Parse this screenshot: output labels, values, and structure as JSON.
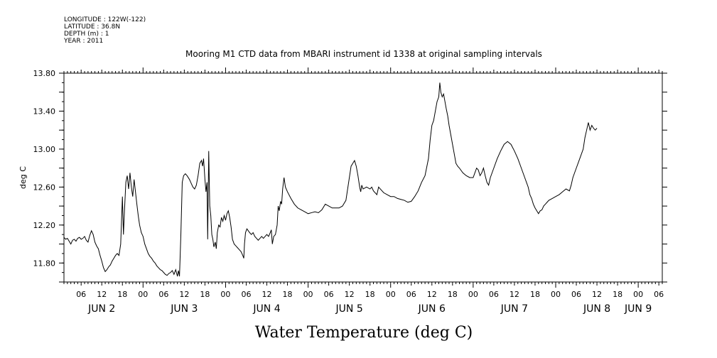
{
  "header": {
    "lines": [
      "LONGITUDE : 122W(-122)",
      "LATITUDE : 36.8N",
      "DEPTH (m) : 1",
      "YEAR : 2011"
    ]
  },
  "chart_data": {
    "type": "line",
    "title": "Mooring M1 CTD data from MBARI instrument id 1338 at original sampling intervals",
    "xlabel": "Water Temperature (deg C)",
    "ylabel": "deg C",
    "x_unit": "hours since JUN 2 00:00, 2011",
    "xlim": [
      1,
      175
    ],
    "ylim": [
      11.6,
      13.8
    ],
    "yticks": [
      "11.80",
      "12.20",
      "12.60",
      "13.00",
      "13.40",
      "13.80"
    ],
    "ytick_values": [
      11.8,
      12.2,
      12.6,
      13.0,
      13.4,
      13.8
    ],
    "xtick_hour_labels": [
      {
        "h": 6,
        "label": "06"
      },
      {
        "h": 12,
        "label": "12"
      },
      {
        "h": 18,
        "label": "18"
      },
      {
        "h": 24,
        "label": "00"
      },
      {
        "h": 30,
        "label": "06"
      },
      {
        "h": 36,
        "label": "12"
      },
      {
        "h": 42,
        "label": "18"
      },
      {
        "h": 48,
        "label": "00"
      },
      {
        "h": 54,
        "label": "06"
      },
      {
        "h": 60,
        "label": "12"
      },
      {
        "h": 66,
        "label": "18"
      },
      {
        "h": 72,
        "label": "00"
      },
      {
        "h": 78,
        "label": "06"
      },
      {
        "h": 84,
        "label": "12"
      },
      {
        "h": 90,
        "label": "18"
      },
      {
        "h": 96,
        "label": "00"
      },
      {
        "h": 102,
        "label": "06"
      },
      {
        "h": 108,
        "label": "12"
      },
      {
        "h": 114,
        "label": "18"
      },
      {
        "h": 120,
        "label": "00"
      },
      {
        "h": 126,
        "label": "06"
      },
      {
        "h": 132,
        "label": "12"
      },
      {
        "h": 138,
        "label": "18"
      },
      {
        "h": 144,
        "label": "00"
      },
      {
        "h": 150,
        "label": "06"
      },
      {
        "h": 156,
        "label": "12"
      },
      {
        "h": 162,
        "label": "18"
      },
      {
        "h": 168,
        "label": "00"
      },
      {
        "h": 174,
        "label": "06"
      }
    ],
    "day_labels": [
      {
        "h": 12,
        "label": "JUN  2"
      },
      {
        "h": 36,
        "label": "JUN  3"
      },
      {
        "h": 60,
        "label": "JUN  4"
      },
      {
        "h": 84,
        "label": "JUN  5"
      },
      {
        "h": 108,
        "label": "JUN  6"
      },
      {
        "h": 132,
        "label": "JUN  7"
      },
      {
        "h": 156,
        "label": "JUN  8"
      },
      {
        "h": 168,
        "label": "JUN  9"
      }
    ],
    "series": [
      {
        "values": [
          [
            1,
            12.07
          ],
          [
            1.5,
            12.05
          ],
          [
            2,
            12.06
          ],
          [
            2.5,
            12.03
          ],
          [
            3,
            12.0
          ],
          [
            3.5,
            12.04
          ],
          [
            4,
            12.05
          ],
          [
            4.5,
            12.03
          ],
          [
            5,
            12.06
          ],
          [
            5.5,
            12.07
          ],
          [
            6,
            12.05
          ],
          [
            6.5,
            12.06
          ],
          [
            7,
            12.08
          ],
          [
            7.5,
            12.04
          ],
          [
            8,
            12.02
          ],
          [
            8.5,
            12.09
          ],
          [
            9,
            12.14
          ],
          [
            9.5,
            12.1
          ],
          [
            10,
            12.02
          ],
          [
            10.5,
            11.98
          ],
          [
            11,
            11.95
          ],
          [
            11.5,
            11.88
          ],
          [
            12,
            11.82
          ],
          [
            12.5,
            11.75
          ],
          [
            13,
            11.71
          ],
          [
            13.5,
            11.73
          ],
          [
            14,
            11.76
          ],
          [
            14.5,
            11.78
          ],
          [
            15,
            11.82
          ],
          [
            15.5,
            11.85
          ],
          [
            16,
            11.88
          ],
          [
            16.5,
            11.9
          ],
          [
            17,
            11.88
          ],
          [
            17.5,
            12.0
          ],
          [
            18,
            12.5
          ],
          [
            18.3,
            12.1
          ],
          [
            18.6,
            12.35
          ],
          [
            19,
            12.65
          ],
          [
            19.4,
            12.72
          ],
          [
            19.8,
            12.58
          ],
          [
            20.2,
            12.75
          ],
          [
            20.6,
            12.6
          ],
          [
            21,
            12.5
          ],
          [
            21.4,
            12.68
          ],
          [
            21.8,
            12.55
          ],
          [
            22.2,
            12.42
          ],
          [
            22.6,
            12.3
          ],
          [
            23,
            12.2
          ],
          [
            23.5,
            12.12
          ],
          [
            24,
            12.08
          ],
          [
            24.5,
            12.0
          ],
          [
            25,
            11.95
          ],
          [
            25.5,
            11.9
          ],
          [
            26,
            11.87
          ],
          [
            26.5,
            11.85
          ],
          [
            27,
            11.82
          ],
          [
            27.5,
            11.8
          ],
          [
            28,
            11.77
          ],
          [
            28.5,
            11.75
          ],
          [
            29,
            11.73
          ],
          [
            29.5,
            11.72
          ],
          [
            30,
            11.7
          ],
          [
            30.5,
            11.68
          ],
          [
            31,
            11.67
          ],
          [
            31.5,
            11.69
          ],
          [
            32,
            11.7
          ],
          [
            32.5,
            11.72
          ],
          [
            33,
            11.68
          ],
          [
            33.5,
            11.73
          ],
          [
            34,
            11.66
          ],
          [
            34.3,
            11.72
          ],
          [
            34.6,
            11.66
          ],
          [
            35,
            12.1
          ],
          [
            35.4,
            12.65
          ],
          [
            35.8,
            12.72
          ],
          [
            36.3,
            12.74
          ],
          [
            36.8,
            12.72
          ],
          [
            37.5,
            12.68
          ],
          [
            38,
            12.64
          ],
          [
            38.5,
            12.6
          ],
          [
            39,
            12.58
          ],
          [
            39.5,
            12.62
          ],
          [
            40,
            12.72
          ],
          [
            40.5,
            12.85
          ],
          [
            41,
            12.88
          ],
          [
            41.3,
            12.82
          ],
          [
            41.6,
            12.9
          ],
          [
            42,
            12.68
          ],
          [
            42.3,
            12.55
          ],
          [
            42.6,
            12.65
          ],
          [
            42.8,
            12.05
          ],
          [
            43.1,
            12.98
          ],
          [
            43.4,
            12.4
          ],
          [
            43.7,
            12.3
          ],
          [
            44,
            12.1
          ],
          [
            44.3,
            12.05
          ],
          [
            44.6,
            11.97
          ],
          [
            45,
            12.02
          ],
          [
            45.3,
            11.95
          ],
          [
            45.6,
            12.12
          ],
          [
            46,
            12.2
          ],
          [
            46.4,
            12.18
          ],
          [
            46.8,
            12.28
          ],
          [
            47.2,
            12.24
          ],
          [
            47.6,
            12.3
          ],
          [
            48,
            12.25
          ],
          [
            48.4,
            12.32
          ],
          [
            48.8,
            12.35
          ],
          [
            49.2,
            12.28
          ],
          [
            49.6,
            12.18
          ],
          [
            50,
            12.05
          ],
          [
            50.5,
            12.0
          ],
          [
            51,
            11.98
          ],
          [
            51.5,
            11.96
          ],
          [
            52,
            11.94
          ],
          [
            52.5,
            11.92
          ],
          [
            53,
            11.88
          ],
          [
            53.3,
            11.85
          ],
          [
            53.5,
            12.0
          ],
          [
            53.8,
            12.12
          ],
          [
            54.2,
            12.16
          ],
          [
            54.6,
            12.14
          ],
          [
            55,
            12.12
          ],
          [
            55.5,
            12.1
          ],
          [
            56,
            12.12
          ],
          [
            56.5,
            12.08
          ],
          [
            57,
            12.06
          ],
          [
            57.5,
            12.04
          ],
          [
            58,
            12.06
          ],
          [
            58.5,
            12.08
          ],
          [
            59,
            12.06
          ],
          [
            59.5,
            12.08
          ],
          [
            60,
            12.1
          ],
          [
            60.5,
            12.08
          ],
          [
            61,
            12.12
          ],
          [
            61.3,
            12.15
          ],
          [
            61.6,
            12.0
          ],
          [
            62,
            12.08
          ],
          [
            62.5,
            12.1
          ],
          [
            63,
            12.2
          ],
          [
            63.3,
            12.4
          ],
          [
            63.6,
            12.35
          ],
          [
            64,
            12.45
          ],
          [
            64.3,
            12.42
          ],
          [
            64.6,
            12.58
          ],
          [
            65,
            12.7
          ],
          [
            65.4,
            12.6
          ],
          [
            66,
            12.55
          ],
          [
            67,
            12.48
          ],
          [
            68,
            12.42
          ],
          [
            69,
            12.38
          ],
          [
            70,
            12.36
          ],
          [
            71,
            12.34
          ],
          [
            72,
            12.32
          ],
          [
            73,
            12.33
          ],
          [
            74,
            12.34
          ],
          [
            75,
            12.33
          ],
          [
            76,
            12.36
          ],
          [
            77,
            12.42
          ],
          [
            78,
            12.4
          ],
          [
            79,
            12.38
          ],
          [
            80,
            12.38
          ],
          [
            81,
            12.38
          ],
          [
            82,
            12.4
          ],
          [
            83,
            12.46
          ],
          [
            84,
            12.7
          ],
          [
            84.5,
            12.82
          ],
          [
            85,
            12.85
          ],
          [
            85.5,
            12.88
          ],
          [
            86,
            12.82
          ],
          [
            86.5,
            12.72
          ],
          [
            87,
            12.6
          ],
          [
            87.3,
            12.55
          ],
          [
            87.6,
            12.62
          ],
          [
            88,
            12.58
          ],
          [
            89,
            12.6
          ],
          [
            90,
            12.58
          ],
          [
            90.5,
            12.6
          ],
          [
            91,
            12.56
          ],
          [
            92,
            12.52
          ],
          [
            92.5,
            12.6
          ],
          [
            93,
            12.58
          ],
          [
            94,
            12.54
          ],
          [
            95,
            12.52
          ],
          [
            96,
            12.5
          ],
          [
            97,
            12.5
          ],
          [
            98,
            12.48
          ],
          [
            99,
            12.47
          ],
          [
            100,
            12.46
          ],
          [
            101,
            12.44
          ],
          [
            102,
            12.45
          ],
          [
            103,
            12.5
          ],
          [
            104,
            12.56
          ],
          [
            105,
            12.65
          ],
          [
            106,
            12.72
          ],
          [
            107,
            12.9
          ],
          [
            107.5,
            13.1
          ],
          [
            108,
            13.25
          ],
          [
            108.5,
            13.3
          ],
          [
            109,
            13.4
          ],
          [
            109.5,
            13.5
          ],
          [
            110,
            13.55
          ],
          [
            110.3,
            13.7
          ],
          [
            110.6,
            13.6
          ],
          [
            111,
            13.55
          ],
          [
            111.4,
            13.58
          ],
          [
            111.8,
            13.5
          ],
          [
            112.2,
            13.42
          ],
          [
            112.6,
            13.35
          ],
          [
            113,
            13.25
          ],
          [
            113.5,
            13.15
          ],
          [
            114,
            13.05
          ],
          [
            114.5,
            12.95
          ],
          [
            115,
            12.85
          ],
          [
            115.5,
            12.82
          ],
          [
            116,
            12.8
          ],
          [
            117,
            12.75
          ],
          [
            118,
            12.72
          ],
          [
            119,
            12.7
          ],
          [
            120,
            12.7
          ],
          [
            120.5,
            12.75
          ],
          [
            121,
            12.8
          ],
          [
            121.5,
            12.78
          ],
          [
            122,
            12.72
          ],
          [
            122.5,
            12.75
          ],
          [
            123,
            12.8
          ],
          [
            123.5,
            12.72
          ],
          [
            124,
            12.65
          ],
          [
            124.5,
            12.62
          ],
          [
            125,
            12.7
          ],
          [
            126,
            12.8
          ],
          [
            127,
            12.9
          ],
          [
            128,
            12.98
          ],
          [
            129,
            13.05
          ],
          [
            130,
            13.08
          ],
          [
            131,
            13.05
          ],
          [
            132,
            12.98
          ],
          [
            133,
            12.9
          ],
          [
            134,
            12.8
          ],
          [
            135,
            12.7
          ],
          [
            135.5,
            12.65
          ],
          [
            136,
            12.6
          ],
          [
            136.5,
            12.52
          ],
          [
            137,
            12.48
          ],
          [
            137.5,
            12.42
          ],
          [
            138,
            12.38
          ],
          [
            138.5,
            12.35
          ],
          [
            139,
            12.32
          ],
          [
            139.5,
            12.35
          ],
          [
            140,
            12.36
          ],
          [
            140.5,
            12.4
          ],
          [
            141,
            12.42
          ],
          [
            141.5,
            12.44
          ],
          [
            142,
            12.46
          ],
          [
            143,
            12.48
          ],
          [
            144,
            12.5
          ],
          [
            145,
            12.52
          ],
          [
            146,
            12.55
          ],
          [
            147,
            12.58
          ],
          [
            148,
            12.56
          ],
          [
            148.5,
            12.62
          ],
          [
            149,
            12.7
          ],
          [
            150,
            12.8
          ],
          [
            151,
            12.9
          ],
          [
            152,
            13.0
          ],
          [
            152.5,
            13.12
          ],
          [
            153,
            13.2
          ],
          [
            153.5,
            13.28
          ],
          [
            154,
            13.2
          ],
          [
            154.5,
            13.25
          ],
          [
            155,
            13.22
          ],
          [
            155.5,
            13.2
          ],
          [
            156,
            13.22
          ]
        ]
      }
    ]
  }
}
